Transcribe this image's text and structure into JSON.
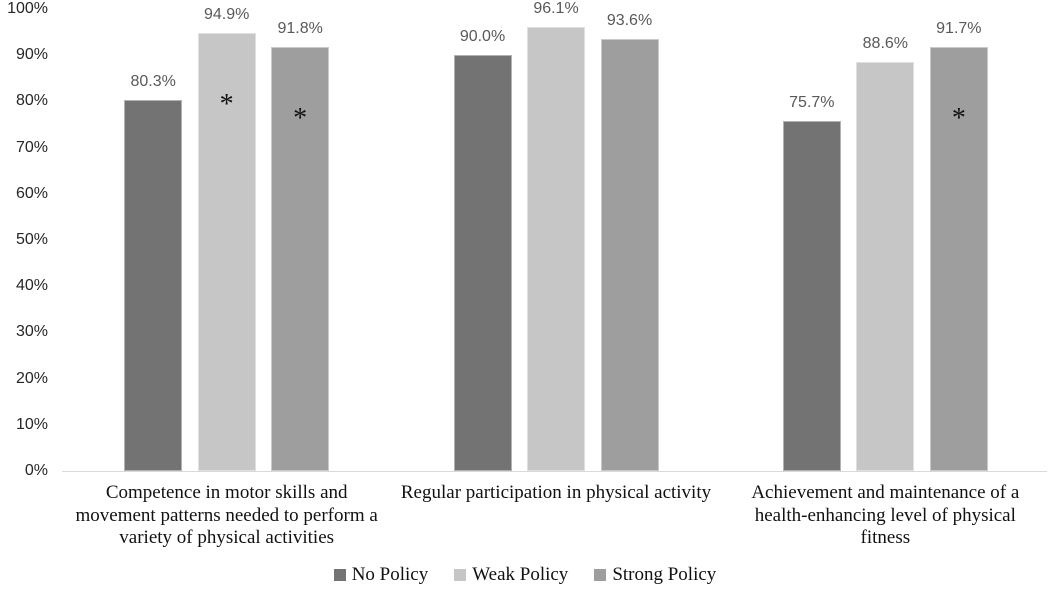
{
  "chart_data": {
    "type": "bar",
    "title": "",
    "xlabel": "",
    "ylabel": "",
    "categories": [
      "Competence in motor skills and\nmovement patterns needed to perform a\nvariety of physical activities",
      "Regular participation in physical activity",
      "Achievement and maintenance of a\nhealth-enhancing level of physical\nfitness"
    ],
    "series": [
      {
        "name": "No Policy",
        "color": "#737373",
        "values": [
          80.3,
          90.0,
          75.7
        ],
        "value_labels": [
          "80.3%",
          "90.0%",
          "75.7%"
        ],
        "asterisks": [
          false,
          false,
          false
        ]
      },
      {
        "name": "Weak Policy",
        "color": "#C6C6C6",
        "values": [
          94.9,
          96.1,
          88.6
        ],
        "value_labels": [
          "94.9%",
          "96.1%",
          "88.6%"
        ],
        "asterisks": [
          true,
          false,
          false
        ]
      },
      {
        "name": "Strong Policy",
        "color": "#9E9E9E",
        "values": [
          91.8,
          93.6,
          91.7
        ],
        "value_labels": [
          "91.8%",
          "93.6%",
          "91.7%"
        ],
        "asterisks": [
          true,
          false,
          true
        ]
      }
    ],
    "annotation_symbol": "*",
    "y_axis": {
      "min": 0,
      "max": 100,
      "tick_labels": [
        "0%",
        "10%",
        "20%",
        "30%",
        "40%",
        "50%",
        "60%",
        "70%",
        "80%",
        "90%",
        "100%"
      ]
    },
    "grid": false,
    "legend": {
      "position": "bottom",
      "entries": [
        "No Policy",
        "Weak Policy",
        "Strong Policy"
      ]
    },
    "colors": {
      "axis_line": "#d9d9d9",
      "value_label_text": "#595959",
      "tick_text": "#262626",
      "category_text": "#111111"
    }
  }
}
